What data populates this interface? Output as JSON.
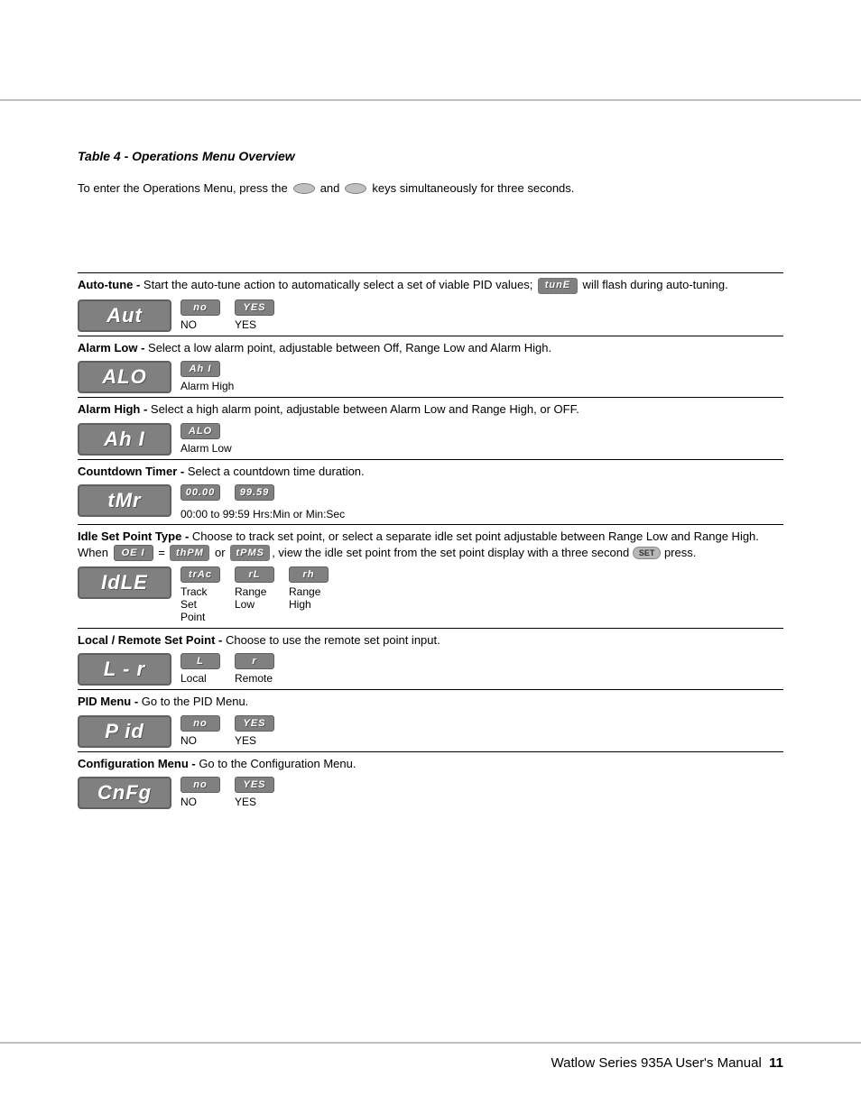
{
  "title": "Table 4 - Operations Menu Overview",
  "intro": {
    "pre": "To enter the Operations Menu, press the",
    "mid": "and",
    "post": "keys simultaneously for three seconds."
  },
  "rows": {
    "aut": {
      "title": "Auto-tune -",
      "desc_pre": " Start the auto-tune action to automatically select a set of viable PID values; ",
      "desc_post": " will flash during auto-tuning.",
      "inline_chip": "tunE",
      "display": "Aut",
      "opts": [
        {
          "chip": "no",
          "label": "NO"
        },
        {
          "chip": "YES",
          "label": "YES"
        }
      ]
    },
    "alo": {
      "title": "Alarm Low -",
      "desc": " Select a low alarm point, adjustable between Off, Range Low and Alarm High.",
      "display": "ALO",
      "opts": [
        {
          "chip": "Ah I",
          "label": "Alarm High"
        }
      ]
    },
    "ahi": {
      "title": "Alarm High -",
      "desc": " Select a high alarm point, adjustable between Alarm Low and Range High, or OFF.",
      "display": "Ah I",
      "opts": [
        {
          "chip": "ALO",
          "label": "Alarm Low"
        }
      ]
    },
    "tmr": {
      "title": "Countdown Timer -",
      "desc": " Select a countdown time duration.",
      "display": "tMr",
      "opts": [
        {
          "chip": "00.00",
          "label": ""
        },
        {
          "chip": "99.59",
          "label": ""
        }
      ],
      "range": "00:00 to 99:59 Hrs:Min or Min:Sec"
    },
    "idle": {
      "title": "Idle Set Point Type -",
      "desc_pre": " Choose to track set point, or select a separate idle set point adjustable between Range Low and Range High. When ",
      "inline_chip1": "OE I",
      "desc_mid1": " = ",
      "inline_chip2": "thPM",
      "desc_mid2": " or ",
      "inline_chip3": "tPMS",
      "desc_mid3": ", view the idle set point from the set point display with a three second ",
      "set_label": "SET",
      "desc_post": " press.",
      "display": "IdLE",
      "opts": [
        {
          "chip": "trAc",
          "label": "Track\nSet\nPoint"
        },
        {
          "chip": "rL",
          "label": "Range\nLow"
        },
        {
          "chip": "rh",
          "label": "Range\nHigh"
        }
      ]
    },
    "lr": {
      "title": "Local / Remote Set Point -",
      "desc": " Choose to use the remote set point input.",
      "display": "L - r",
      "opts": [
        {
          "chip": "L",
          "label": "Local"
        },
        {
          "chip": "r",
          "label": "Remote"
        }
      ]
    },
    "pid": {
      "title": "PID Menu -",
      "desc": " Go to the PID Menu.",
      "display": "P id",
      "opts": [
        {
          "chip": "no",
          "label": "NO"
        },
        {
          "chip": "YES",
          "label": "YES"
        }
      ]
    },
    "cnfg": {
      "title": "Configuration Menu -",
      "desc": " Go to the Configuration Menu.",
      "display": "CnFg",
      "opts": [
        {
          "chip": "no",
          "label": "NO"
        },
        {
          "chip": "YES",
          "label": "YES"
        }
      ]
    }
  },
  "footer": {
    "text": "Watlow Series 935A User's Manual",
    "page": "11"
  },
  "colors": {
    "chip_bg": "#808080",
    "chip_border": "#606060",
    "rule": "#bfbfbf",
    "text": "#000000"
  }
}
